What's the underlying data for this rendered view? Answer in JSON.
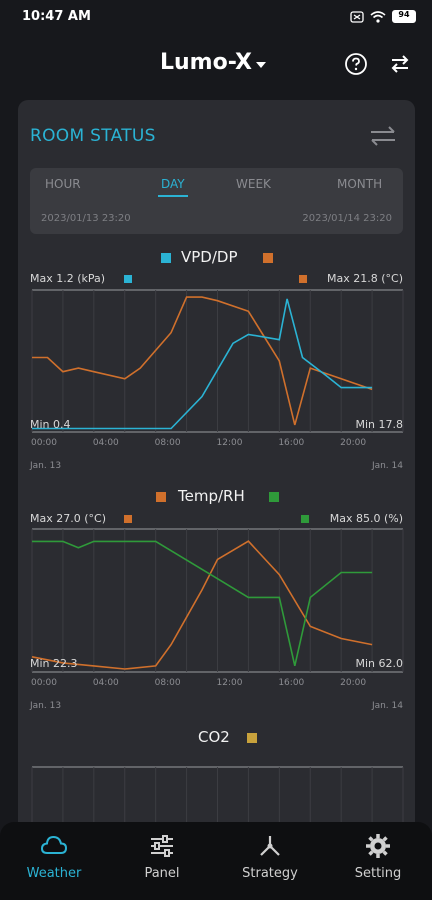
{
  "status": {
    "time": "10:47 AM",
    "battery": "94"
  },
  "header": {
    "title": "Lumo-X"
  },
  "card": {
    "title": "ROOM STATUS",
    "tabs": [
      {
        "label": "HOUR",
        "active": false
      },
      {
        "label": "DAY",
        "active": true
      },
      {
        "label": "WEEK",
        "active": false
      },
      {
        "label": "MONTH",
        "active": false
      }
    ],
    "range_start": "2023/01/13   23:20",
    "range_end": "2023/01/14   23:20"
  },
  "colors": {
    "accent": "#2bb3d4",
    "vpd": "#2bb3d4",
    "dp": "#d0702c",
    "temp": "#d0702c",
    "rh": "#2f9a3a",
    "co2": "#c8a23c"
  },
  "chart_data": [
    {
      "type": "line",
      "title": "VPD/DP",
      "x_ticks": [
        "00:00",
        "04:00",
        "08:00",
        "12:00",
        "16:00",
        "20:00"
      ],
      "date_start": "Jan. 13",
      "date_end": "Jan. 14",
      "left_max_label": "Max 1.2 (kPa)",
      "right_max_label": "Max 21.8 (°C)",
      "left_min_label": "Min 0.4",
      "right_min_label": "Min 17.8",
      "series": [
        {
          "name": "VPD",
          "color": "#2bb3d4",
          "x": [
            0,
            3,
            6,
            9,
            11,
            13,
            14,
            16,
            16.5,
            17.5,
            19,
            20,
            22
          ],
          "y": [
            0.42,
            0.42,
            0.42,
            0.42,
            0.6,
            0.9,
            0.95,
            0.92,
            1.15,
            0.82,
            0.72,
            0.65,
            0.65
          ]
        },
        {
          "name": "DP",
          "color": "#d0702c",
          "x": [
            0,
            1,
            2,
            3,
            4,
            6,
            7,
            9,
            10,
            11,
            12,
            14,
            16,
            17,
            18,
            20,
            22
          ],
          "y": [
            19.9,
            19.9,
            19.5,
            19.6,
            19.5,
            19.3,
            19.6,
            20.6,
            21.6,
            21.6,
            21.5,
            21.2,
            19.8,
            18.0,
            19.6,
            19.3,
            19.0
          ]
        }
      ]
    },
    {
      "type": "line",
      "title": "Temp/RH",
      "x_ticks": [
        "00:00",
        "04:00",
        "08:00",
        "12:00",
        "16:00",
        "20:00"
      ],
      "date_start": "Jan. 13",
      "date_end": "Jan. 14",
      "left_max_label": "Max 27.0 (°C)",
      "right_max_label": "Max 85.0 (%)",
      "left_min_label": "Min 22.3",
      "right_min_label": "Min 62.0",
      "series": [
        {
          "name": "Temp",
          "color": "#d0702c",
          "x": [
            0,
            2,
            4,
            6,
            8,
            9,
            11,
            12,
            14,
            16,
            18,
            20,
            22
          ],
          "y": [
            22.8,
            22.6,
            22.5,
            22.4,
            22.5,
            23.2,
            25.0,
            26.0,
            26.6,
            25.5,
            23.8,
            23.4,
            23.2
          ]
        },
        {
          "name": "RH",
          "color": "#2f9a3a",
          "x": [
            0,
            2,
            3,
            4,
            6,
            8,
            10,
            12,
            14,
            16,
            17,
            18,
            20,
            22
          ],
          "y": [
            83,
            83,
            82,
            83,
            83,
            83,
            80,
            77,
            74,
            74,
            63,
            74,
            78,
            78
          ]
        }
      ]
    },
    {
      "type": "line",
      "title": "CO2",
      "series": []
    }
  ],
  "nav": [
    {
      "label": "Weather",
      "icon": "cloud-icon",
      "active": true
    },
    {
      "label": "Panel",
      "icon": "sliders-icon",
      "active": false
    },
    {
      "label": "Strategy",
      "icon": "strategy-icon",
      "active": false
    },
    {
      "label": "Setting",
      "icon": "gear-icon",
      "active": false
    }
  ]
}
